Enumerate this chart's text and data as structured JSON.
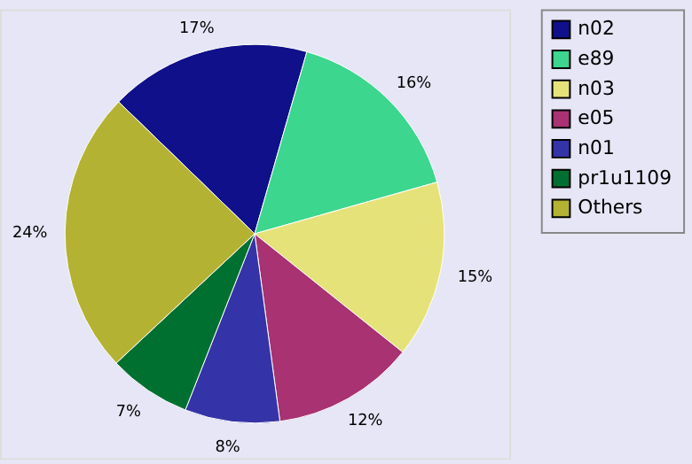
{
  "chart_data": {
    "type": "pie",
    "categories": [
      "n02",
      "e89",
      "n03",
      "e05",
      "n01",
      "pr1u1109",
      "Others"
    ],
    "values": [
      17,
      16,
      15,
      12,
      8,
      7,
      24
    ],
    "colors": [
      "#10108a",
      "#3cd68e",
      "#e6e27a",
      "#a83272",
      "#3434a8",
      "#007030",
      "#b4b232"
    ],
    "value_labels": [
      "17%",
      "16%",
      "15%",
      "12%",
      "8%",
      "7%",
      "24%"
    ],
    "legend": "right"
  }
}
